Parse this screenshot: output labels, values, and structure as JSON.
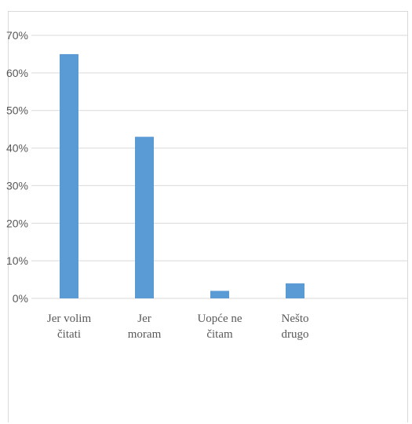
{
  "chart_data": {
    "type": "bar",
    "categories": [
      [
        "Jer volim",
        "čitati"
      ],
      [
        "Jer",
        "moram"
      ],
      [
        "Uopće ne",
        "čitam"
      ],
      [
        "Nešto",
        "drugo"
      ],
      [
        "",
        ""
      ]
    ],
    "values": [
      65,
      43,
      2,
      4,
      null
    ],
    "ylim": [
      0,
      70
    ],
    "yticks": [
      0,
      10,
      20,
      30,
      40,
      50,
      60,
      70
    ],
    "ytick_labels": [
      "0%",
      "10%",
      "20%",
      "30%",
      "40%",
      "50%",
      "60%",
      "70%"
    ],
    "grid": true,
    "bar_color": "#5b9bd5",
    "grid_color": "#d9d9d9"
  }
}
